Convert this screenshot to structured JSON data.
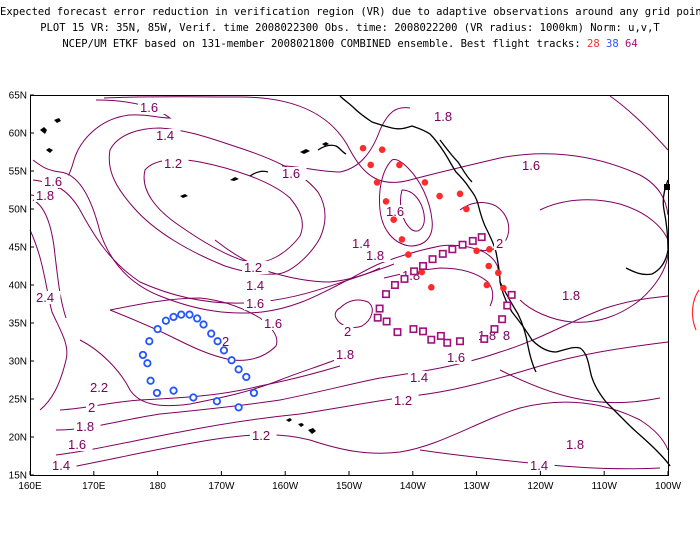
{
  "title": {
    "line1": "Expected forecast error reduction in verification region (VR) due to adaptive observations around any grid point.",
    "line2": "PLOT 15 VR: 35N, 85W, Verif. time 2008022300 Obs. time: 2008022200 (VR radius: 1000km) Norm: u,v,T",
    "line3_prefix": "NCEP/UM ETKF based on 131-member 2008021800 COMBINED ensemble.  Best flight tracks:",
    "track_a": "28",
    "track_b": "38",
    "track_c": "64"
  },
  "map": {
    "lat_ticks": [
      "65N",
      "60N",
      "55N",
      "50N",
      "45N",
      "40N",
      "35N",
      "30N",
      "25N",
      "20N",
      "15N"
    ],
    "lon_ticks": [
      "160E",
      "170E",
      "180",
      "170W",
      "160W",
      "150W",
      "140W",
      "130W",
      "120W",
      "110W",
      "100W"
    ],
    "contour_color": "#800060",
    "colors": {
      "track_a": "#ff2a2a",
      "track_b": "#2255ff",
      "track_c": "#a0107a"
    },
    "contour_labels": [
      "1.6",
      "1.4",
      "1.2",
      "1.6",
      "1.8",
      "1.6",
      "1.2",
      "1.4",
      "1.6",
      "1.8",
      "2.4",
      "2",
      "2.2",
      "2",
      "1.8",
      "1.6",
      "1.4",
      "1.2",
      "1.4",
      "1.6",
      "1.8",
      "2",
      "1.8",
      "1.8",
      "1.8",
      "1.6",
      "1.4",
      "1.2",
      "1.2",
      "1.8",
      "1.6",
      "1.4",
      "1.8",
      "1.8",
      "1.6",
      "1.8",
      "2"
    ]
  },
  "chart_data": {
    "type": "scatter",
    "title": "Expected forecast error reduction in verification region (VR) due to adaptive observations around any grid point.",
    "xlim": [
      "160E",
      "100W"
    ],
    "ylim": [
      "15N",
      "65N"
    ],
    "series": [
      {
        "name": "28",
        "marker": "filled-circle",
        "color": "#ff2a2a",
        "points": [
          [
            -147.8,
            58
          ],
          [
            -146.6,
            55.8
          ],
          [
            -144.8,
            57.8
          ],
          [
            -142.1,
            55.8
          ],
          [
            -145.6,
            53.5
          ],
          [
            -144.2,
            51
          ],
          [
            -143,
            48.6
          ],
          [
            -141.7,
            46
          ],
          [
            -140.7,
            44
          ],
          [
            -138.6,
            41.7
          ],
          [
            -137.1,
            39.7
          ],
          [
            -138.1,
            53.5
          ],
          [
            -135.8,
            51.7
          ],
          [
            -132.6,
            52
          ],
          [
            -131.6,
            50
          ],
          [
            -129.2,
            46.2
          ],
          [
            -130,
            44.5
          ],
          [
            -128,
            44.7
          ],
          [
            -128.1,
            42.5
          ],
          [
            -126.6,
            41.6
          ],
          [
            -125.8,
            39.6
          ],
          [
            -128.4,
            40
          ]
        ]
      },
      {
        "name": "38",
        "marker": "open-circle",
        "color": "#2255ff",
        "points": [
          [
            -176.3,
            36.1
          ],
          [
            -177.5,
            35.8
          ],
          [
            -178.7,
            35.3
          ],
          [
            -180,
            34.2
          ],
          [
            -181.3,
            32.6
          ],
          [
            -182.3,
            30.8
          ],
          [
            -181.6,
            29.7
          ],
          [
            -181.1,
            27.4
          ],
          [
            -180.1,
            25.8
          ],
          [
            -177.5,
            26.1
          ],
          [
            -174.4,
            25.2
          ],
          [
            -170.7,
            24.7
          ],
          [
            -167.3,
            23.9
          ],
          [
            -164.9,
            25.8
          ],
          [
            -166.1,
            27.9
          ],
          [
            -167.3,
            28.9
          ],
          [
            -168.4,
            30.1
          ],
          [
            -169.6,
            31.4
          ],
          [
            -170.6,
            32.6
          ],
          [
            -171.6,
            33.6
          ],
          [
            -172.8,
            34.8
          ],
          [
            -173.8,
            35.6
          ],
          [
            -175,
            36.1
          ]
        ]
      },
      {
        "name": "64",
        "marker": "open-square",
        "color": "#a0107a",
        "points": [
          [
            -145.5,
            35.7
          ],
          [
            -144.1,
            35.2
          ],
          [
            -142.4,
            33.8
          ],
          [
            -139.9,
            34.2
          ],
          [
            -138.4,
            33.9
          ],
          [
            -137.1,
            32.8
          ],
          [
            -135.6,
            33.3
          ],
          [
            -134.6,
            32.4
          ],
          [
            -132.6,
            32.6
          ],
          [
            -128.8,
            32.9
          ],
          [
            -127.2,
            34.2
          ],
          [
            -126,
            35.5
          ],
          [
            -125.2,
            37.3
          ],
          [
            -124.5,
            38.7
          ],
          [
            -145.2,
            36.9
          ],
          [
            -144.2,
            38.8
          ],
          [
            -142.8,
            40
          ],
          [
            -141.3,
            40.8
          ],
          [
            -139.8,
            41.8
          ],
          [
            -138.4,
            42.5
          ],
          [
            -136.9,
            43.4
          ],
          [
            -135.3,
            44.1
          ],
          [
            -133.8,
            44.7
          ],
          [
            -132.2,
            45.3
          ],
          [
            -130.6,
            45.8
          ],
          [
            -129.2,
            46.3
          ]
        ]
      }
    ]
  }
}
